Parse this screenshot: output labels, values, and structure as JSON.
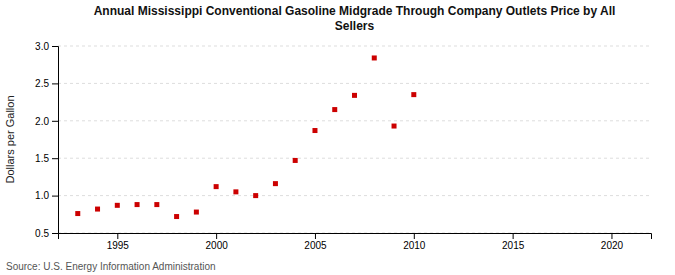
{
  "chart_data": {
    "type": "scatter",
    "title": "Annual Mississippi Conventional Gasoline Midgrade Through Company Outlets Price by All\nSellers",
    "y_label": "Dollars per Gallon",
    "source": "Source: U.S. Energy Information Administration",
    "x": [
      1993,
      1994,
      1995,
      1996,
      1997,
      1998,
      1999,
      2000,
      2001,
      2002,
      2003,
      2004,
      2005,
      2006,
      2007,
      2008,
      2009,
      2010
    ],
    "values": [
      0.76,
      0.82,
      0.87,
      0.88,
      0.88,
      0.72,
      0.78,
      1.12,
      1.05,
      1.0,
      1.16,
      1.47,
      1.87,
      2.15,
      2.34,
      2.84,
      1.93,
      2.35
    ],
    "color": "#cc0000",
    "marker": "square",
    "xlim": [
      1992,
      2022
    ],
    "ylim": [
      0.5,
      3.0
    ],
    "xticks": [
      1995,
      2000,
      2005,
      2010,
      2015,
      2020
    ],
    "yticks": [
      0.5,
      {
        "value": 1.0,
        "label": "1.0"
      },
      1.5,
      {
        "value": 2.0,
        "label": "2.0"
      },
      2.5,
      {
        "value": 3.0,
        "label": "3.0"
      }
    ],
    "grid": true
  }
}
